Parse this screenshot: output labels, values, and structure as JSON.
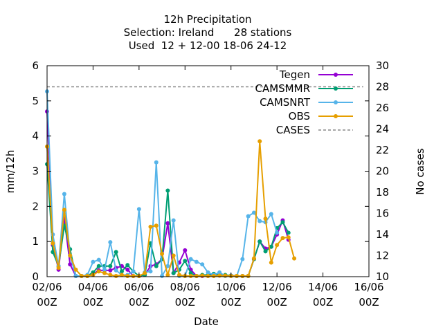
{
  "chart_data": {
    "type": "line",
    "title_lines": [
      "12h Precipitation",
      "Selection: Ireland      28 stations",
      "Used  12 + 12-00 18-06 24-12"
    ],
    "xlabel": "Date",
    "ylabel": "mm/12h",
    "y2label": "No cases",
    "x_range_hours": [
      0,
      336
    ],
    "ylim": [
      0,
      6
    ],
    "y2lim": [
      10,
      30
    ],
    "x_ticks": [
      {
        "h": 0,
        "line1": "02/06",
        "line2": "00Z"
      },
      {
        "h": 48,
        "line1": "04/06",
        "line2": "00Z"
      },
      {
        "h": 96,
        "line1": "06/06",
        "line2": "00Z"
      },
      {
        "h": 144,
        "line1": "08/06",
        "line2": "00Z"
      },
      {
        "h": 192,
        "line1": "10/06",
        "line2": "00Z"
      },
      {
        "h": 240,
        "line1": "12/06",
        "line2": "00Z"
      },
      {
        "h": 288,
        "line1": "14/06",
        "line2": "00Z"
      },
      {
        "h": 336,
        "line1": "16/06",
        "line2": "00Z"
      }
    ],
    "y_ticks": [
      "0",
      "1",
      "2",
      "3",
      "4",
      "5",
      "6"
    ],
    "y2_ticks": [
      "10",
      "12",
      "14",
      "16",
      "18",
      "20",
      "22",
      "24",
      "26",
      "28",
      "30"
    ],
    "x_hours": [
      0,
      6,
      12,
      18,
      24,
      30,
      36,
      42,
      48,
      54,
      60,
      66,
      72,
      78,
      84,
      90,
      96,
      102,
      108,
      114,
      120,
      126,
      132,
      138,
      144,
      150,
      156,
      162,
      168,
      174,
      180,
      186,
      192,
      198,
      204,
      210,
      216,
      222,
      228,
      234,
      240,
      246,
      252,
      258,
      264,
      270,
      276,
      282,
      288,
      294,
      300,
      306,
      312,
      318,
      324,
      330
    ],
    "legend_position": "top-right",
    "series": [
      {
        "name": "Tegen",
        "color": "#9400d3",
        "values": [
          4.7,
          0.9,
          0.2,
          1.65,
          0.35,
          0.02,
          0.02,
          0.02,
          0.08,
          0.18,
          0.18,
          0.18,
          0.25,
          0.3,
          0.2,
          0.02,
          0.02,
          0.05,
          0.3,
          0.35,
          0.5,
          1.52,
          0.1,
          0.4,
          0.75,
          0.2,
          0.02,
          0.02,
          0.03,
          0.03,
          0.04,
          0.03,
          0.03,
          0.02,
          0.02,
          0.02,
          0.5,
          1.0,
          0.8,
          0.85,
          1.2,
          1.6,
          1.05,
          null,
          null,
          null,
          null,
          null,
          null,
          null,
          null,
          null,
          null,
          null,
          null,
          null
        ]
      },
      {
        "name": "CAMSMMR",
        "color": "#009e73",
        "values": [
          3.2,
          0.7,
          0.3,
          1.45,
          0.78,
          0.02,
          0.02,
          0.02,
          0.12,
          0.3,
          0.3,
          0.3,
          0.7,
          0.15,
          0.33,
          0.15,
          0.02,
          0.05,
          0.95,
          0.3,
          0.5,
          2.45,
          0.1,
          0.2,
          0.45,
          0.1,
          0.02,
          0.05,
          0.05,
          0.08,
          0.05,
          0.05,
          0.03,
          0.02,
          0.02,
          0.02,
          0.5,
          1.0,
          0.72,
          0.85,
          1.38,
          1.55,
          1.25,
          null,
          null,
          null,
          null,
          null,
          null,
          null,
          null,
          null,
          null,
          null,
          null,
          null
        ]
      },
      {
        "name": "CAMSNRT",
        "color": "#56b4e9",
        "values": [
          5.27,
          1.2,
          0.3,
          2.35,
          0.6,
          0.02,
          0.02,
          0.05,
          0.42,
          0.48,
          0.2,
          0.98,
          0.18,
          0.05,
          0.05,
          0.15,
          1.92,
          0.12,
          0.15,
          3.25,
          0.02,
          0.3,
          1.6,
          0.02,
          0.02,
          0.5,
          0.42,
          0.35,
          0.12,
          0.05,
          0.12,
          0.02,
          0.02,
          0.02,
          0.5,
          1.72,
          1.82,
          1.58,
          1.55,
          1.78,
          1.25,
          null,
          null,
          null,
          null,
          null,
          null,
          null,
          null,
          null,
          null,
          null,
          null,
          null,
          null,
          null
        ]
      },
      {
        "name": "OBS",
        "color": "#e69f00",
        "values": [
          3.7,
          0.95,
          0.25,
          1.9,
          0.6,
          0.2,
          0.02,
          0.02,
          0.05,
          0.15,
          0.1,
          0.05,
          0.02,
          0.05,
          0.02,
          0.02,
          0.02,
          0.1,
          1.42,
          1.45,
          0.65,
          0.05,
          0.6,
          0.05,
          0.02,
          0.02,
          0.02,
          0.03,
          0.02,
          0.02,
          0.03,
          0.03,
          0.02,
          0.02,
          0.02,
          0.02,
          0.52,
          3.85,
          1.65,
          0.4,
          0.9,
          1.1,
          1.12,
          0.52,
          null,
          null,
          null,
          null,
          null,
          null,
          null,
          null,
          null,
          null,
          null,
          null
        ]
      },
      {
        "name": "CASES",
        "color": "#888888",
        "axis": "y2",
        "values": [
          28,
          28,
          28,
          28,
          28,
          28,
          28,
          28,
          28,
          28,
          28,
          28,
          28,
          28,
          28,
          28,
          28,
          28,
          28,
          28,
          28,
          28,
          28,
          28,
          28,
          28,
          28,
          28,
          28,
          28,
          28,
          28,
          28,
          28,
          28,
          28,
          28,
          28,
          28,
          28,
          28,
          28,
          28,
          28,
          28,
          28,
          28,
          28,
          28,
          28,
          28,
          28,
          28,
          28,
          28,
          28
        ]
      }
    ]
  }
}
